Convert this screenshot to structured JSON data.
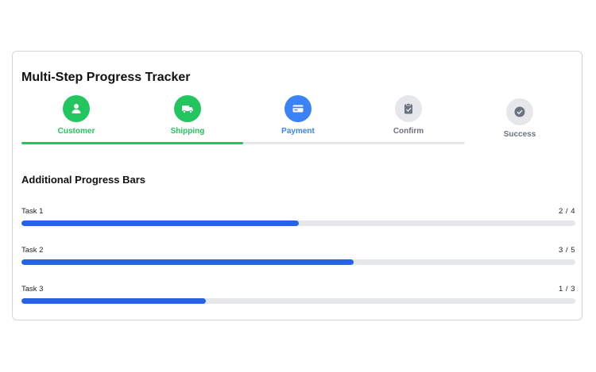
{
  "title": "Multi-Step Progress Tracker",
  "steps": [
    {
      "label": "Customer",
      "status": "complete",
      "icon": "user-icon",
      "color": "#22c55e"
    },
    {
      "label": "Shipping",
      "status": "complete",
      "icon": "truck-icon",
      "color": "#22c55e"
    },
    {
      "label": "Payment",
      "status": "active",
      "icon": "credit-card-icon",
      "color": "#3b82f6"
    },
    {
      "label": "Confirm",
      "status": "pending",
      "icon": "clipboard-check-icon",
      "color": "#6b7280"
    },
    {
      "label": "Success",
      "status": "pending",
      "icon": "check-circle-icon",
      "color": "#6b7280"
    }
  ],
  "step_progress_fraction": 0.5,
  "additional_title": "Additional Progress Bars",
  "tasks": [
    {
      "label": "Task 1",
      "count": "2 / 4",
      "fraction": 0.5
    },
    {
      "label": "Task 2",
      "count": "3 / 5",
      "fraction": 0.6
    },
    {
      "label": "Task 3",
      "count": "1 / 3",
      "fraction": 0.3333
    }
  ],
  "colors": {
    "complete": "#22c55e",
    "active": "#3b82f6",
    "pending_bg": "#e5e7eb",
    "pending_fg": "#6b7280",
    "bar": "#2563eb"
  }
}
